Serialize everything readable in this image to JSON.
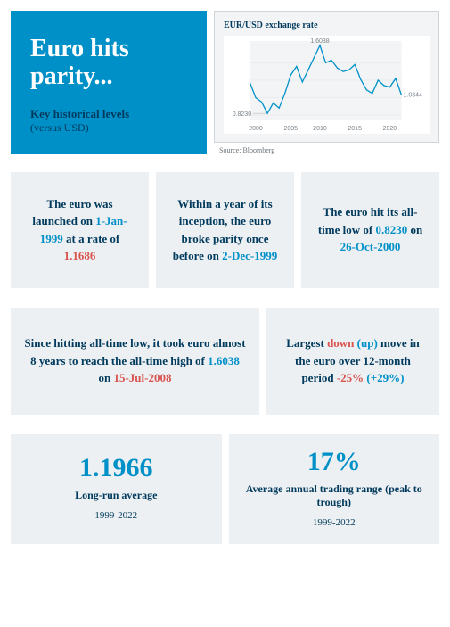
{
  "header": {
    "title": "Euro hits parity...",
    "subtitle_strong": "Key historical levels",
    "subtitle_light": "(versus USD)"
  },
  "chart": {
    "type": "line",
    "title": "EUR/USD exchange rate",
    "source": "Source: Bloomberg",
    "background_color": "#ffffff",
    "line_color": "#0090c8",
    "ylim": [
      0.75,
      1.65
    ],
    "x_labels": [
      "2000",
      "2005",
      "2010",
      "2015",
      "2020"
    ],
    "low_label": "0.8230",
    "high_label": "1.6038",
    "last_label": "1.0344",
    "points_y": [
      1.17,
      1.0,
      0.95,
      0.82,
      0.94,
      0.88,
      1.05,
      1.26,
      1.36,
      1.18,
      1.32,
      1.46,
      1.6,
      1.4,
      1.43,
      1.34,
      1.3,
      1.32,
      1.38,
      1.21,
      1.09,
      1.05,
      1.2,
      1.14,
      1.12,
      1.22,
      1.03
    ]
  },
  "cards": {
    "c1_pre": "The euro was launched on ",
    "c1_date": "1-Jan-1999",
    "c1_mid": " at a rate of ",
    "c1_rate": "1.1686",
    "c2_pre": "Within a year of its inception, the euro broke parity once before on ",
    "c2_date": "2-Dec-1999",
    "c3_pre": "The euro hit its all-time low of ",
    "c3_val": "0.8230",
    "c3_mid": " on ",
    "c3_date": "26-Oct-2000",
    "c4_pre": "Since hitting all-time low, it took euro almost 8 years to reach the all-time high of ",
    "c4_val": "1.6038",
    "c4_mid": " on ",
    "c4_date": "15-Jul-2008",
    "c5_pre": "Largest ",
    "c5_down": "down",
    "c5_up": " (up)",
    "c5_mid": " move in the euro over 12-month period ",
    "c5_neg": "-25%",
    "c5_pos": " (+29%)",
    "c6_big": "1.1966",
    "c6_label": "Long-run average",
    "c6_sub": "1999-2022",
    "c7_big": "17%",
    "c7_label": "Average annual trading range (peak to trough)",
    "c7_sub": "1999-2022"
  }
}
